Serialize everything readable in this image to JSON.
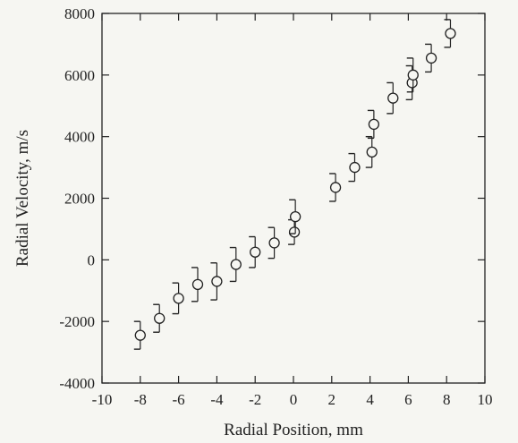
{
  "chart_data": {
    "type": "scatter",
    "title": "",
    "xlabel": "Radial Position, mm",
    "ylabel": "Radial Velocity, m/s",
    "xlim": [
      -10,
      10
    ],
    "ylim": [
      -4000,
      8000
    ],
    "x_ticks": [
      -10,
      -8,
      -6,
      -4,
      -2,
      0,
      2,
      4,
      6,
      8,
      10
    ],
    "y_ticks": [
      -4000,
      -2000,
      0,
      2000,
      4000,
      6000,
      8000
    ],
    "grid": false,
    "marker": "open-circle",
    "error_bars": "one-sided caps, symmetric",
    "series": [
      {
        "points": [
          {
            "x": -8.0,
            "y": -2450,
            "err": 450
          },
          {
            "x": -7.0,
            "y": -1900,
            "err": 450
          },
          {
            "x": -6.0,
            "y": -1250,
            "err": 500
          },
          {
            "x": -5.0,
            "y": -800,
            "err": 550
          },
          {
            "x": -4.0,
            "y": -700,
            "err": 600
          },
          {
            "x": -3.0,
            "y": -150,
            "err": 550
          },
          {
            "x": -2.0,
            "y": 250,
            "err": 500
          },
          {
            "x": -1.0,
            "y": 550,
            "err": 500
          },
          {
            "x": 0.05,
            "y": 900,
            "err": 400
          },
          {
            "x": 0.1,
            "y": 1400,
            "err": 550
          },
          {
            "x": 2.2,
            "y": 2350,
            "err": 450
          },
          {
            "x": 3.2,
            "y": 3000,
            "err": 450
          },
          {
            "x": 4.1,
            "y": 3500,
            "err": 500
          },
          {
            "x": 4.2,
            "y": 4400,
            "err": 450
          },
          {
            "x": 5.2,
            "y": 5250,
            "err": 500
          },
          {
            "x": 6.2,
            "y": 5750,
            "err": 550
          },
          {
            "x": 6.25,
            "y": 6000,
            "err": 550
          },
          {
            "x": 7.2,
            "y": 6550,
            "err": 450
          },
          {
            "x": 8.2,
            "y": 7350,
            "err": 450
          }
        ]
      }
    ]
  }
}
